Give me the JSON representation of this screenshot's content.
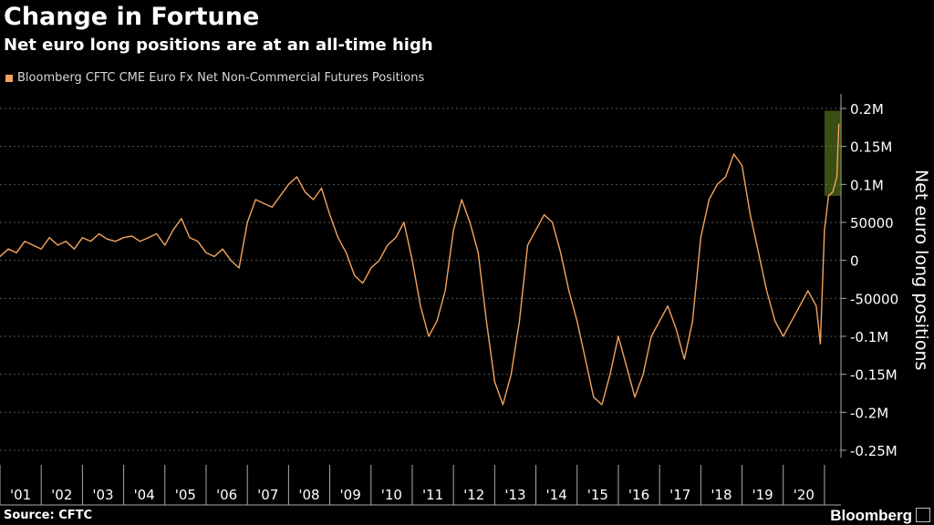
{
  "header": {
    "title": "Change in Fortune",
    "subtitle": "Net euro long positions are at an all-time high"
  },
  "footer": {
    "source": "Source: CFTC",
    "brand": "Bloomberg"
  },
  "colors": {
    "line": "#f2a35e",
    "highlight": "#6b8e23",
    "grid": "#555555",
    "background": "#000000"
  },
  "chart_data": {
    "type": "line",
    "title": "Change in Fortune",
    "subtitle": "Net euro long positions are at an all-time high",
    "ylabel": "Net euro long positions",
    "ylim": [
      -250000,
      200000
    ],
    "xlim": [
      2000.0,
      2020.4
    ],
    "yticks": [
      200000,
      150000,
      100000,
      50000,
      0,
      -50000,
      -100000,
      -150000,
      -200000,
      -250000
    ],
    "ytick_labels": [
      "0.2M",
      "0.15M",
      "0.1M",
      "50000",
      "0",
      "-50000",
      "-0.1M",
      "-0.15M",
      "-0.2M",
      "-0.25M"
    ],
    "xticks": [
      2001,
      2002,
      2003,
      2004,
      2005,
      2006,
      2007,
      2008,
      2009,
      2010,
      2011,
      2012,
      2013,
      2014,
      2015,
      2016,
      2017,
      2018,
      2019,
      2020
    ],
    "xtick_labels": [
      "'01",
      "'02",
      "'03",
      "'04",
      "'05",
      "'06",
      "'07",
      "'08",
      "'09",
      "'10",
      "'11",
      "'12",
      "'13",
      "'14",
      "'15",
      "'16",
      "'17",
      "'18",
      "'19",
      "'20"
    ],
    "grid": "horizontal dashed",
    "highlight_region": {
      "x": [
        2020.0,
        2020.4
      ],
      "y": [
        85000,
        197000
      ]
    },
    "series": [
      {
        "name": "Bloomberg CFTC CME Euro Fx Net Non-Commercial Futures Positions",
        "x": [
          2000.0,
          2000.2,
          2000.4,
          2000.6,
          2000.8,
          2001.0,
          2001.2,
          2001.4,
          2001.6,
          2001.8,
          2002.0,
          2002.2,
          2002.4,
          2002.6,
          2002.8,
          2003.0,
          2003.2,
          2003.4,
          2003.6,
          2003.8,
          2004.0,
          2004.2,
          2004.4,
          2004.6,
          2004.8,
          2005.0,
          2005.2,
          2005.4,
          2005.6,
          2005.8,
          2006.0,
          2006.2,
          2006.4,
          2006.6,
          2006.8,
          2007.0,
          2007.2,
          2007.4,
          2007.6,
          2007.8,
          2008.0,
          2008.2,
          2008.4,
          2008.6,
          2008.8,
          2009.0,
          2009.2,
          2009.4,
          2009.6,
          2009.8,
          2010.0,
          2010.2,
          2010.4,
          2010.6,
          2010.8,
          2011.0,
          2011.2,
          2011.4,
          2011.6,
          2011.8,
          2012.0,
          2012.2,
          2012.4,
          2012.6,
          2012.8,
          2013.0,
          2013.2,
          2013.4,
          2013.6,
          2013.8,
          2014.0,
          2014.2,
          2014.4,
          2014.6,
          2014.8,
          2015.0,
          2015.2,
          2015.4,
          2015.6,
          2015.8,
          2016.0,
          2016.2,
          2016.4,
          2016.6,
          2016.8,
          2017.0,
          2017.2,
          2017.4,
          2017.6,
          2017.8,
          2018.0,
          2018.2,
          2018.4,
          2018.6,
          2018.8,
          2019.0,
          2019.2,
          2019.4,
          2019.6,
          2019.8,
          2019.9,
          2020.0,
          2020.1,
          2020.2,
          2020.3,
          2020.35
        ],
        "y": [
          5000,
          15000,
          10000,
          25000,
          20000,
          15000,
          30000,
          20000,
          25000,
          15000,
          30000,
          25000,
          35000,
          28000,
          25000,
          30000,
          32000,
          25000,
          30000,
          35000,
          20000,
          40000,
          55000,
          30000,
          25000,
          10000,
          5000,
          15000,
          0,
          -10000,
          50000,
          80000,
          75000,
          70000,
          85000,
          100000,
          110000,
          90000,
          80000,
          95000,
          60000,
          30000,
          10000,
          -20000,
          -30000,
          -10000,
          0,
          20000,
          30000,
          50000,
          0,
          -60000,
          -100000,
          -80000,
          -40000,
          40000,
          80000,
          50000,
          10000,
          -80000,
          -160000,
          -190000,
          -150000,
          -80000,
          20000,
          40000,
          60000,
          50000,
          10000,
          -40000,
          -80000,
          -130000,
          -180000,
          -190000,
          -150000,
          -100000,
          -140000,
          -180000,
          -150000,
          -100000,
          -80000,
          -60000,
          -90000,
          -130000,
          -80000,
          30000,
          80000,
          100000,
          110000,
          140000,
          125000,
          60000,
          10000,
          -40000,
          -80000,
          -100000,
          -80000,
          -60000,
          -40000,
          -60000,
          -110000,
          40000,
          85000,
          90000,
          110000,
          180000
        ]
      }
    ]
  }
}
